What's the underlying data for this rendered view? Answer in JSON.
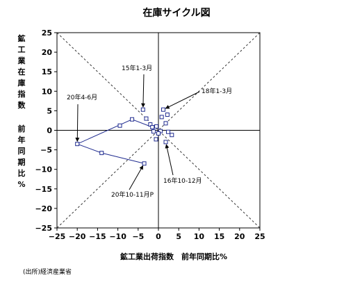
{
  "title": "在庫サイクル図",
  "source": "(出所)経済産業省",
  "chart_data": {
    "type": "scatter",
    "title": "在庫サイクル図",
    "xlabel": "鉱工業出荷指数　前年同期比%",
    "ylabel_lines": [
      "鉱",
      "工",
      "業",
      "在",
      "庫",
      "指",
      "数",
      "",
      "前",
      "年",
      "同",
      "期",
      "比",
      "%"
    ],
    "xlim": [
      -25,
      25
    ],
    "ylim": [
      -25,
      25
    ],
    "x_ticks": [
      "−25",
      "−20",
      "−15",
      "−10",
      "−5",
      "0",
      "5",
      "10",
      "15",
      "20",
      "25"
    ],
    "y_ticks": [
      "25",
      "20",
      "15",
      "10",
      "5",
      "0",
      "−5",
      "−10",
      "−15",
      "−20",
      "−25"
    ],
    "grid": false,
    "diagonal_guides": true,
    "series_color": "#1f2b8f",
    "points": [
      {
        "x": -3.8,
        "y": 5.3
      },
      {
        "x": -3.0,
        "y": 3.0
      },
      {
        "x": -2.0,
        "y": 1.5
      },
      {
        "x": -1.2,
        "y": -0.3
      },
      {
        "x": -1.5,
        "y": 0.8
      },
      {
        "x": 0.8,
        "y": 3.4
      },
      {
        "x": 1.2,
        "y": 5.3
      },
      {
        "x": 2.2,
        "y": 4.0
      },
      {
        "x": 1.8,
        "y": 1.8
      },
      {
        "x": 0.5,
        "y": -0.2
      },
      {
        "x": -0.5,
        "y": 1.0
      },
      {
        "x": -0.6,
        "y": -2.3
      },
      {
        "x": 0.0,
        "y": -0.8
      },
      {
        "x": 2.4,
        "y": -0.4
      },
      {
        "x": 3.3,
        "y": -1.2
      },
      {
        "x": 1.8,
        "y": -3.0
      },
      {
        "x": -6.5,
        "y": 2.8
      },
      {
        "x": -9.5,
        "y": 1.2
      },
      {
        "x": -20.0,
        "y": -3.5
      },
      {
        "x": -14.0,
        "y": -5.8
      },
      {
        "x": -3.5,
        "y": -8.5
      }
    ],
    "connected_path": [
      {
        "x": -1.5,
        "y": 0.8
      },
      {
        "x": -6.5,
        "y": 2.8
      },
      {
        "x": -20.0,
        "y": -3.5
      },
      {
        "x": -14.0,
        "y": -5.8
      },
      {
        "x": -3.5,
        "y": -8.5
      }
    ],
    "annotations": [
      {
        "text": "15年1-3月",
        "x": -3.8,
        "y": 5.3
      },
      {
        "text": "18年1-3月",
        "x": 1.2,
        "y": 5.3
      },
      {
        "text": "20年4-6月",
        "x": -20.0,
        "y": -3.5
      },
      {
        "text": "16年10-12月",
        "x": 1.8,
        "y": -3.0
      },
      {
        "text": "20年10-11月P",
        "x": -3.5,
        "y": -8.5
      }
    ]
  }
}
